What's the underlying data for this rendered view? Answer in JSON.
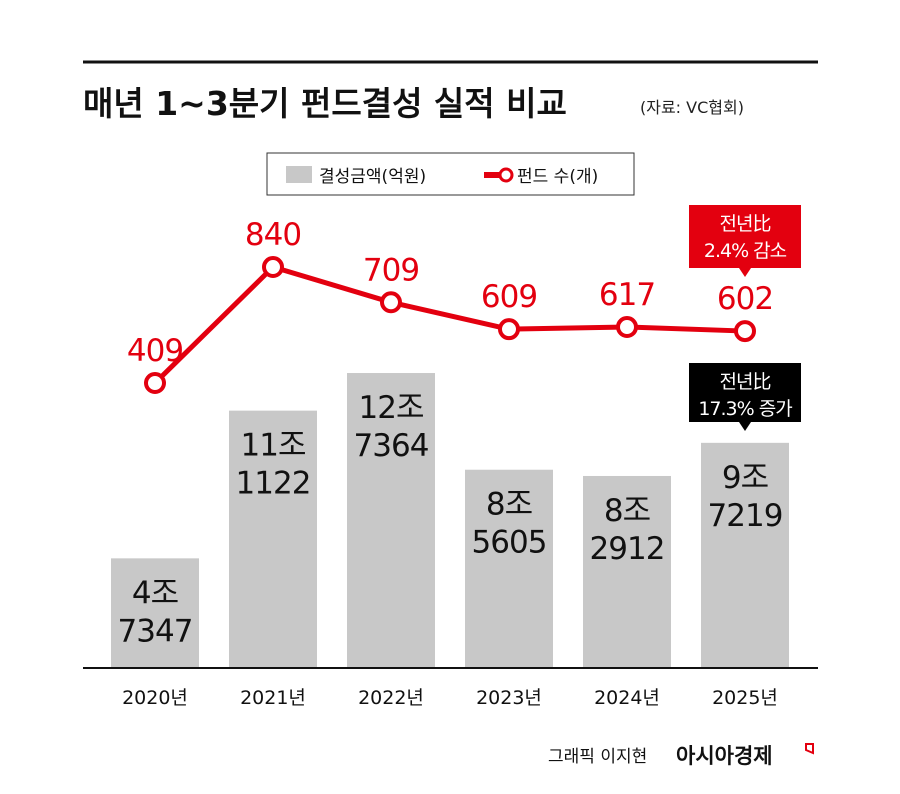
{
  "chart_data": {
    "type": "bar+line",
    "title": "매년 1~3분기 펀드결성 실적 비교",
    "source": "(자료: VC협회)",
    "categories": [
      "2020년",
      "2021년",
      "2022년",
      "2023년",
      "2024년",
      "2025년"
    ],
    "series": [
      {
        "name": "결성금액(억원)",
        "type": "bar",
        "color": "#c8c8c8",
        "values": [
          47347,
          111122,
          127364,
          85605,
          82912,
          97219
        ],
        "labels": [
          [
            "4조",
            "7347"
          ],
          [
            "11조",
            "1122"
          ],
          [
            "12조",
            "7364"
          ],
          [
            "8조",
            "5605"
          ],
          [
            "8조",
            "2912"
          ],
          [
            "9조",
            "7219"
          ]
        ]
      },
      {
        "name": "펀드 수(개)",
        "type": "line",
        "color": "#e3000f",
        "values": [
          409,
          840,
          709,
          609,
          617,
          602
        ]
      }
    ],
    "annotations": [
      {
        "series": "펀드 수(개)",
        "category": "2025년",
        "lines": [
          "전년比",
          "2.4% 감소"
        ],
        "color": "#e3000f"
      },
      {
        "series": "결성금액(억원)",
        "category": "2025년",
        "lines": [
          "전년比",
          "17.3% 증가"
        ],
        "color": "#000000"
      }
    ],
    "legend": "top-center",
    "grid": false
  },
  "credit": {
    "author": "그래픽 이지현",
    "brand": "아시아경제"
  }
}
